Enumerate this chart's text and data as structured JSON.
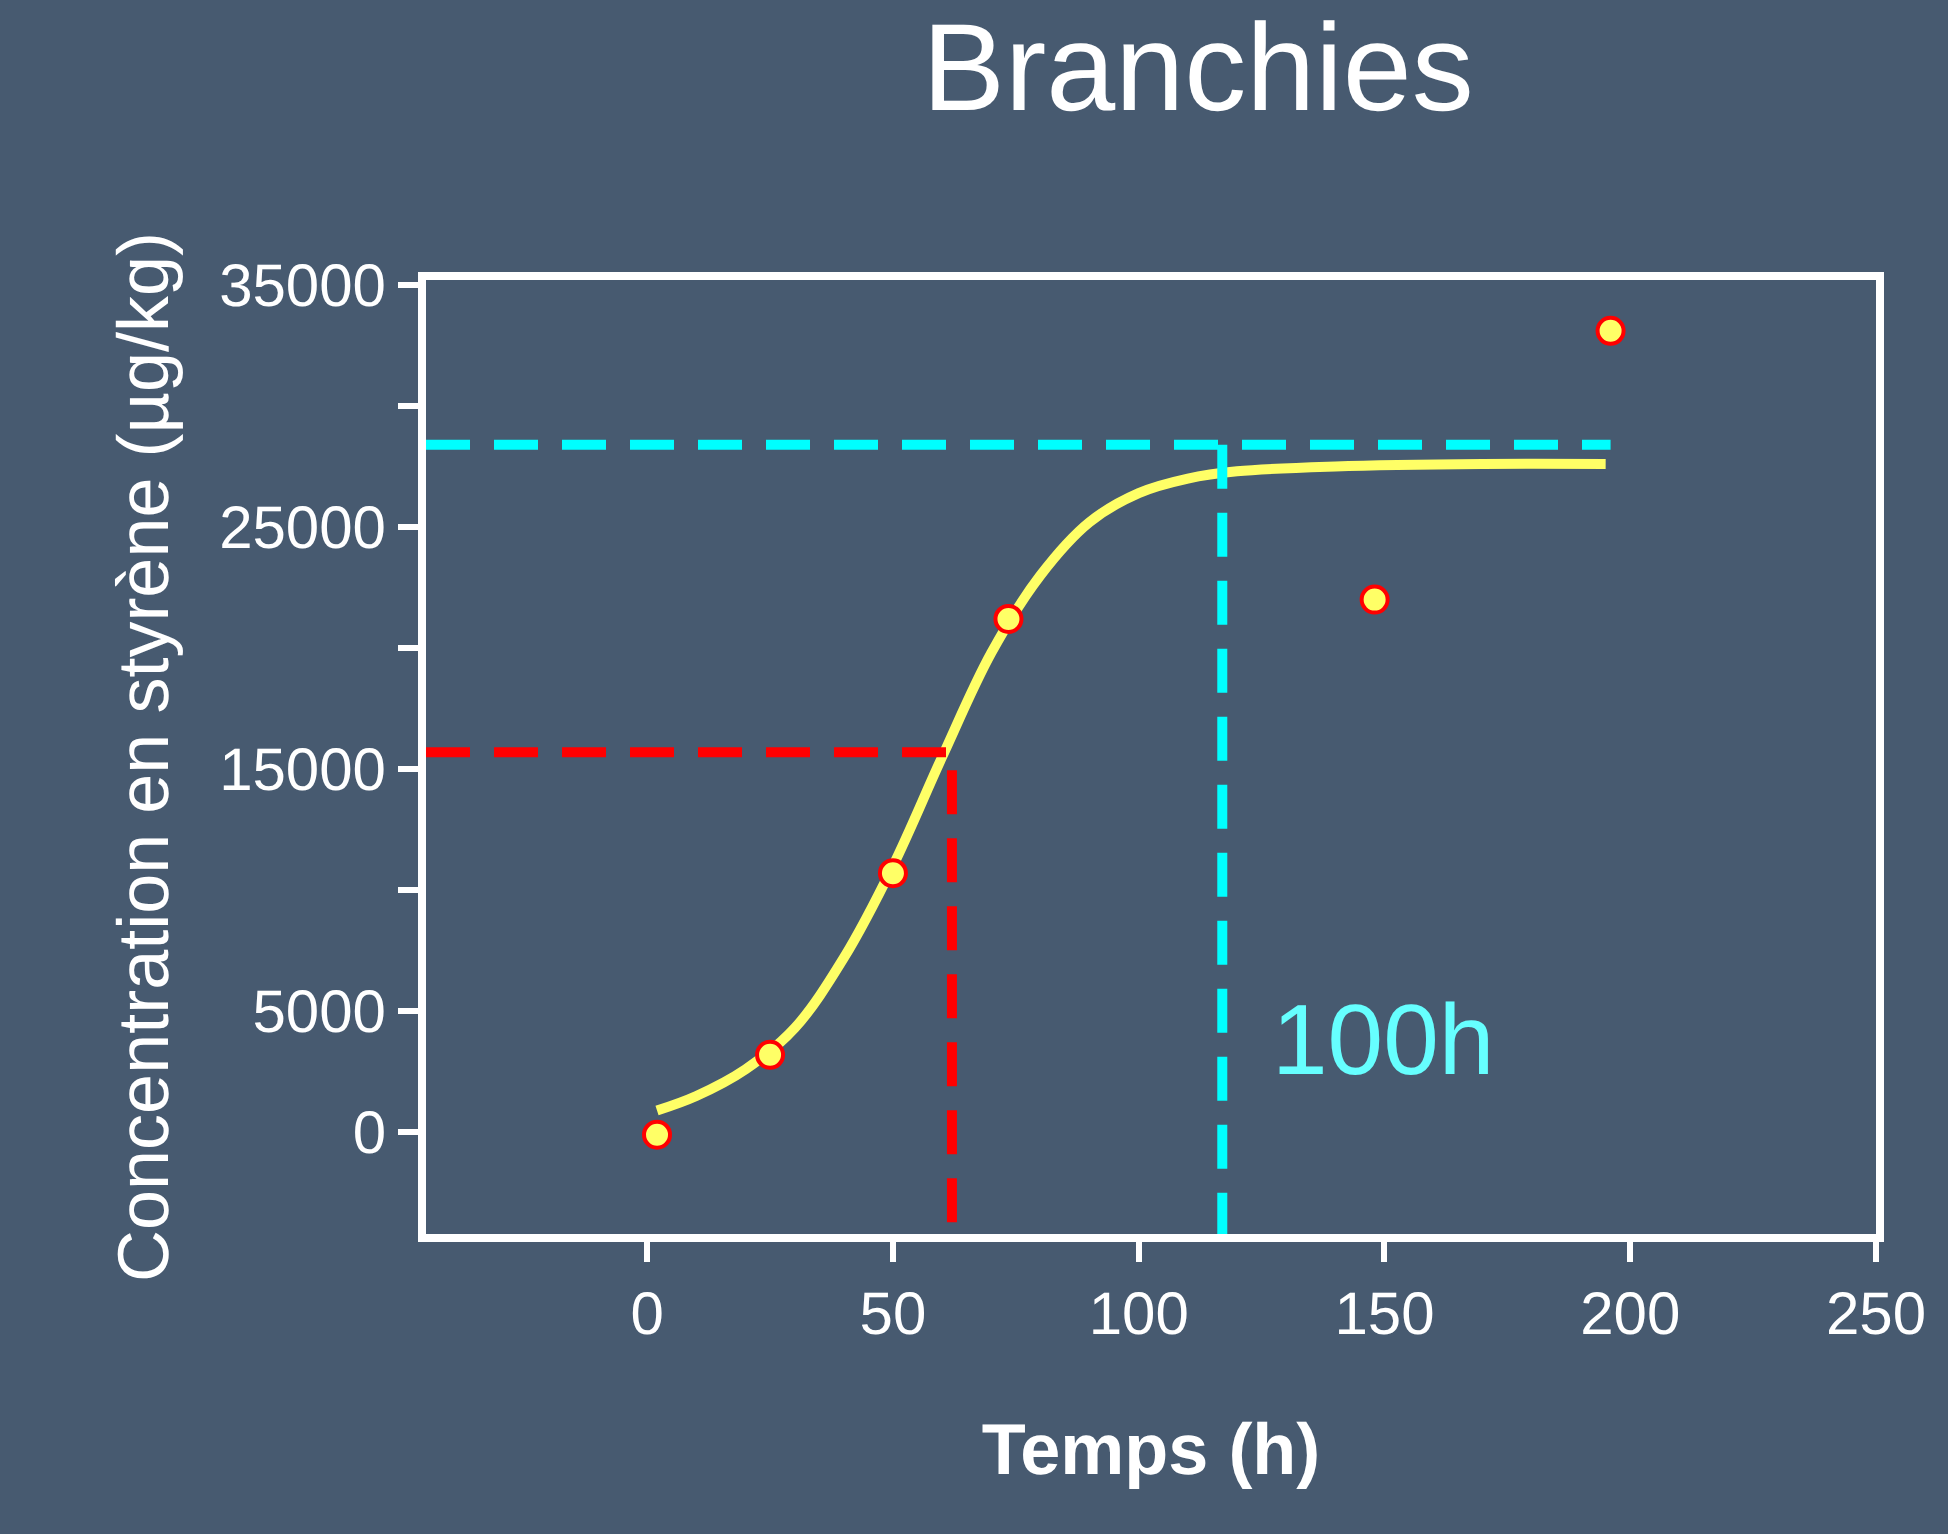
{
  "chart_data": {
    "type": "scatter",
    "title": "Branchies",
    "xlabel": "Temps (h)",
    "ylabel": "Concentration en styrène (µg/kg)",
    "xlim": [
      -45,
      250
    ],
    "ylim": [
      -4200,
      35200
    ],
    "xticks": [
      0,
      50,
      100,
      150,
      200,
      250
    ],
    "yticks": [
      0,
      5000,
      {
        "value": 10000,
        "label": null
      },
      15000,
      {
        "value": 20000,
        "label": null
      },
      25000,
      {
        "value": 30000,
        "label": null
      },
      35000
    ],
    "grid": false,
    "series": [
      {
        "type": "line",
        "color": "#ffff66",
        "line_style": "solid",
        "marker": "none",
        "x": [
          2,
          10,
          20,
          30,
          40,
          50,
          60,
          70,
          80,
          90,
          100,
          110,
          120,
          140,
          170,
          195
        ],
        "values": [
          900,
          1500,
          2600,
          4300,
          7200,
          11000,
          15500,
          19800,
          23000,
          25200,
          26400,
          27000,
          27300,
          27500,
          27600,
          27600
        ]
      },
      {
        "type": "line",
        "color": "#ff0000",
        "line_style": "dashed",
        "marker": "none",
        "x": [
          -45,
          62,
          62
        ],
        "values": [
          15700,
          15700,
          -4200
        ]
      },
      {
        "type": "line",
        "color": "#00ffff",
        "line_style": "dashed",
        "marker": "none",
        "x": [
          -45,
          196
        ],
        "values": [
          28400,
          28400
        ]
      },
      {
        "type": "line",
        "color": "#00ffff",
        "line_style": "dashed",
        "marker": "none",
        "x": [
          117,
          117
        ],
        "values": [
          28400,
          -4200
        ]
      },
      {
        "color": "#ffff66",
        "marker": "circle",
        "x": [
          2,
          25,
          50,
          73.5,
          148,
          196
        ],
        "values": [
          -100,
          3200,
          10700,
          21200,
          22000,
          33100
        ]
      }
    ],
    "annotations": [
      "100h"
    ]
  }
}
